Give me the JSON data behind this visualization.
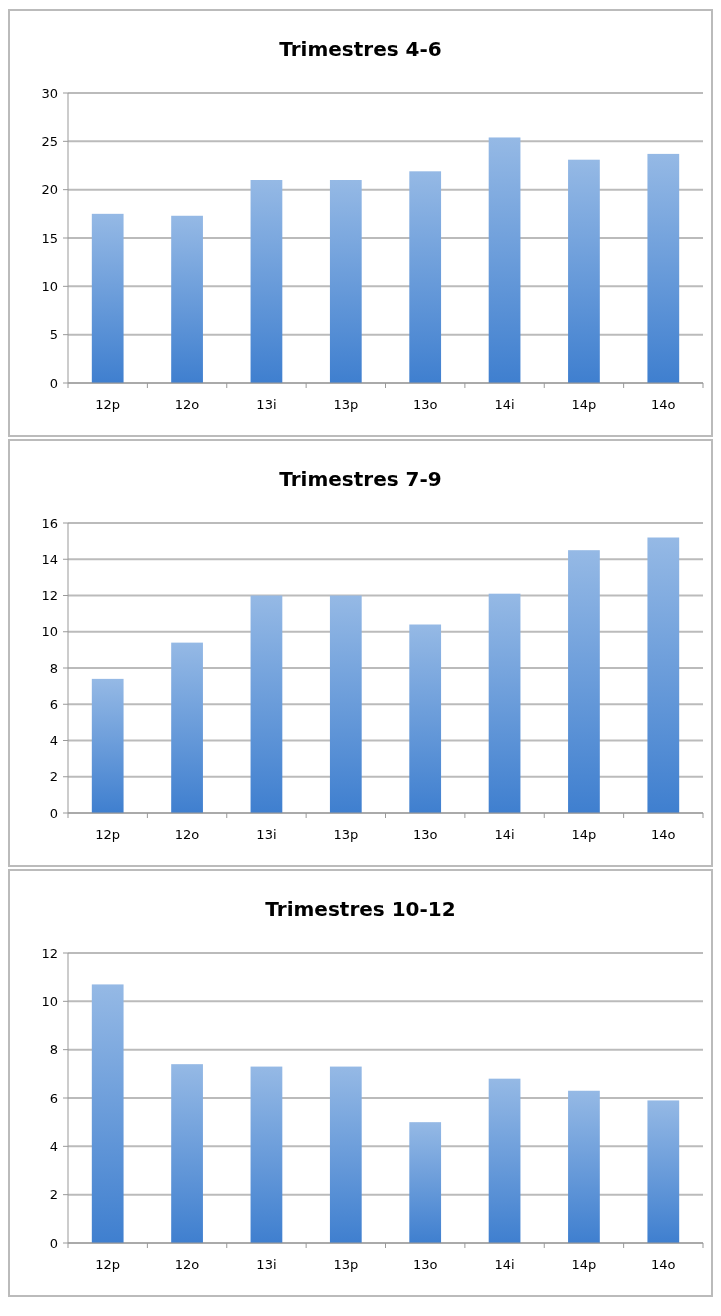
{
  "chart_data": [
    {
      "type": "bar",
      "title": "Trimestres 4-6",
      "categories": [
        "12p",
        "12o",
        "13i",
        "13p",
        "13o",
        "14i",
        "14p",
        "14o"
      ],
      "values": [
        17.5,
        17.3,
        21.0,
        21.0,
        21.9,
        25.4,
        23.1,
        23.7
      ],
      "color": "#3f7fcf",
      "ylim": [
        0,
        30
      ],
      "yticks": [
        0,
        5,
        10,
        15,
        20,
        25,
        30
      ],
      "grid": "y"
    },
    {
      "type": "bar",
      "title": "Trimestres 7-9",
      "categories": [
        "12p",
        "12o",
        "13i",
        "13p",
        "13o",
        "14i",
        "14p",
        "14o"
      ],
      "values": [
        7.4,
        9.4,
        12.0,
        12.0,
        10.4,
        12.1,
        14.5,
        15.2
      ],
      "color": "#3f7fcf",
      "ylim": [
        0,
        16
      ],
      "yticks": [
        0,
        2,
        4,
        6,
        8,
        10,
        12,
        14,
        16
      ],
      "grid": "y"
    },
    {
      "type": "bar",
      "title": "Trimestres 10-12",
      "categories": [
        "12p",
        "12o",
        "13i",
        "13p",
        "13o",
        "14i",
        "14p",
        "14o"
      ],
      "values": [
        10.7,
        7.4,
        7.3,
        7.3,
        5.0,
        6.8,
        6.3,
        5.9
      ],
      "color": "#3f7fcf",
      "ylim": [
        0,
        12
      ],
      "yticks": [
        0,
        2,
        4,
        6,
        8,
        10,
        12
      ],
      "grid": "y"
    }
  ]
}
